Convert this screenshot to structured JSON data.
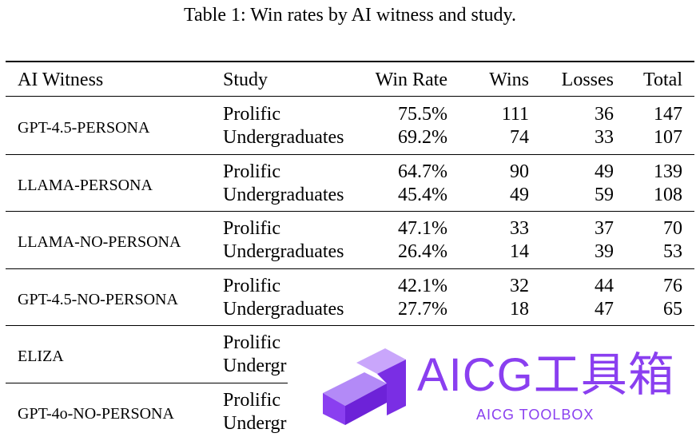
{
  "caption": "Table 1: Win rates by AI witness and study.",
  "headers": {
    "witness": "AI Witness",
    "study": "Study",
    "win_rate": "Win Rate",
    "wins": "Wins",
    "losses": "Losses",
    "total": "Total"
  },
  "groups": [
    {
      "witness": "GPT-4.5-PERSONA",
      "rows": [
        {
          "study": "Prolific",
          "win_rate": "75.5%",
          "wins": "111",
          "losses": "36",
          "total": "147"
        },
        {
          "study": "Undergraduates",
          "win_rate": "69.2%",
          "wins": "74",
          "losses": "33",
          "total": "107"
        }
      ]
    },
    {
      "witness": "LLAMA-PERSONA",
      "rows": [
        {
          "study": "Prolific",
          "win_rate": "64.7%",
          "wins": "90",
          "losses": "49",
          "total": "139"
        },
        {
          "study": "Undergraduates",
          "win_rate": "45.4%",
          "wins": "49",
          "losses": "59",
          "total": "108"
        }
      ]
    },
    {
      "witness": "LLAMA-NO-PERSONA",
      "rows": [
        {
          "study": "Prolific",
          "win_rate": "47.1%",
          "wins": "33",
          "losses": "37",
          "total": "70"
        },
        {
          "study": "Undergraduates",
          "win_rate": "26.4%",
          "wins": "14",
          "losses": "39",
          "total": "53"
        }
      ]
    },
    {
      "witness": "GPT-4.5-NO-PERSONA",
      "rows": [
        {
          "study": "Prolific",
          "win_rate": "42.1%",
          "wins": "32",
          "losses": "44",
          "total": "76"
        },
        {
          "study": "Undergraduates",
          "win_rate": "27.7%",
          "wins": "18",
          "losses": "47",
          "total": "65"
        }
      ]
    },
    {
      "witness": "ELIZA",
      "rows": [
        {
          "study": "Prolific",
          "win_rate": "",
          "wins": "",
          "losses": "",
          "total": ""
        },
        {
          "study": "Undergr",
          "win_rate": "",
          "wins": "",
          "losses": "",
          "total": ""
        }
      ]
    },
    {
      "witness": "GPT-4o-NO-PERSONA",
      "rows": [
        {
          "study": "Prolific",
          "win_rate": "",
          "wins": "",
          "losses": "",
          "total": ""
        },
        {
          "study": "Undergr",
          "win_rate": "",
          "wins": "",
          "losses": "",
          "total": ""
        }
      ]
    }
  ],
  "watermark": {
    "title": "AICG工具箱",
    "subtitle": "AICG TOOLBOX",
    "accent_color": "#8a3ff0"
  }
}
